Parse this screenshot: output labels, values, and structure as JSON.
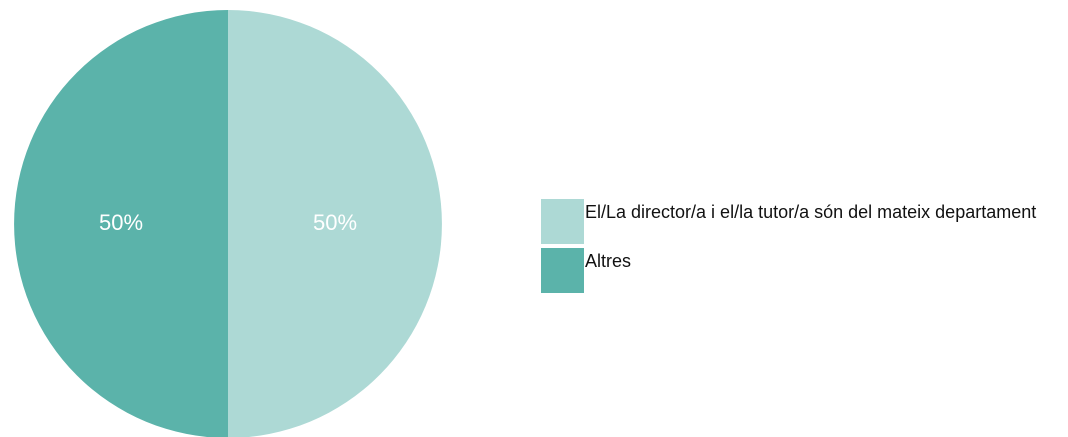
{
  "chart_data": {
    "type": "pie",
    "categories": [
      "El/La director/a i el/la tutor/a són del mateix departament",
      "Altres"
    ],
    "values": [
      50,
      50
    ],
    "value_labels": [
      "50%",
      "50%"
    ],
    "colors": [
      "#add9d5",
      "#5bb3aa"
    ],
    "legend": "right"
  }
}
